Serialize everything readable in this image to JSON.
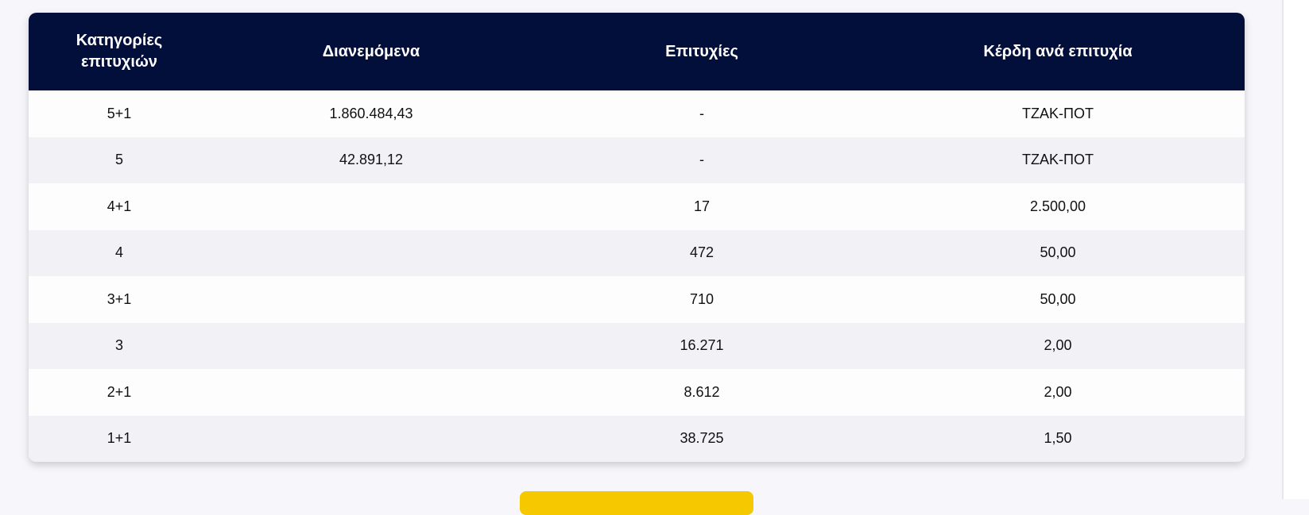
{
  "table": {
    "headers": [
      "Κατηγορίες\nεπιτυχιών",
      "Διανεμόμενα",
      "Επιτυχίες",
      "Κέρδη ανά επιτυχία"
    ],
    "rows": [
      {
        "category": "5+1",
        "distributed": "1.860.484,43",
        "winners": "-",
        "prize": "ΤΖΑΚ-ΠΟΤ"
      },
      {
        "category": "5",
        "distributed": "42.891,12",
        "winners": "-",
        "prize": "ΤΖΑΚ-ΠΟΤ"
      },
      {
        "category": "4+1",
        "distributed": "",
        "winners": "17",
        "prize": "2.500,00"
      },
      {
        "category": "4",
        "distributed": "",
        "winners": "472",
        "prize": "50,00"
      },
      {
        "category": "3+1",
        "distributed": "",
        "winners": "710",
        "prize": "50,00"
      },
      {
        "category": "3",
        "distributed": "",
        "winners": "16.271",
        "prize": "2,00"
      },
      {
        "category": "2+1",
        "distributed": "",
        "winners": "8.612",
        "prize": "2,00"
      },
      {
        "category": "1+1",
        "distributed": "",
        "winners": "38.725",
        "prize": "1,50"
      }
    ]
  },
  "colors": {
    "header_bg": "#030f3b",
    "header_text": "#ffffff",
    "row_alt_bg": "#f2f2f6",
    "button_bg": "#f5c800"
  }
}
